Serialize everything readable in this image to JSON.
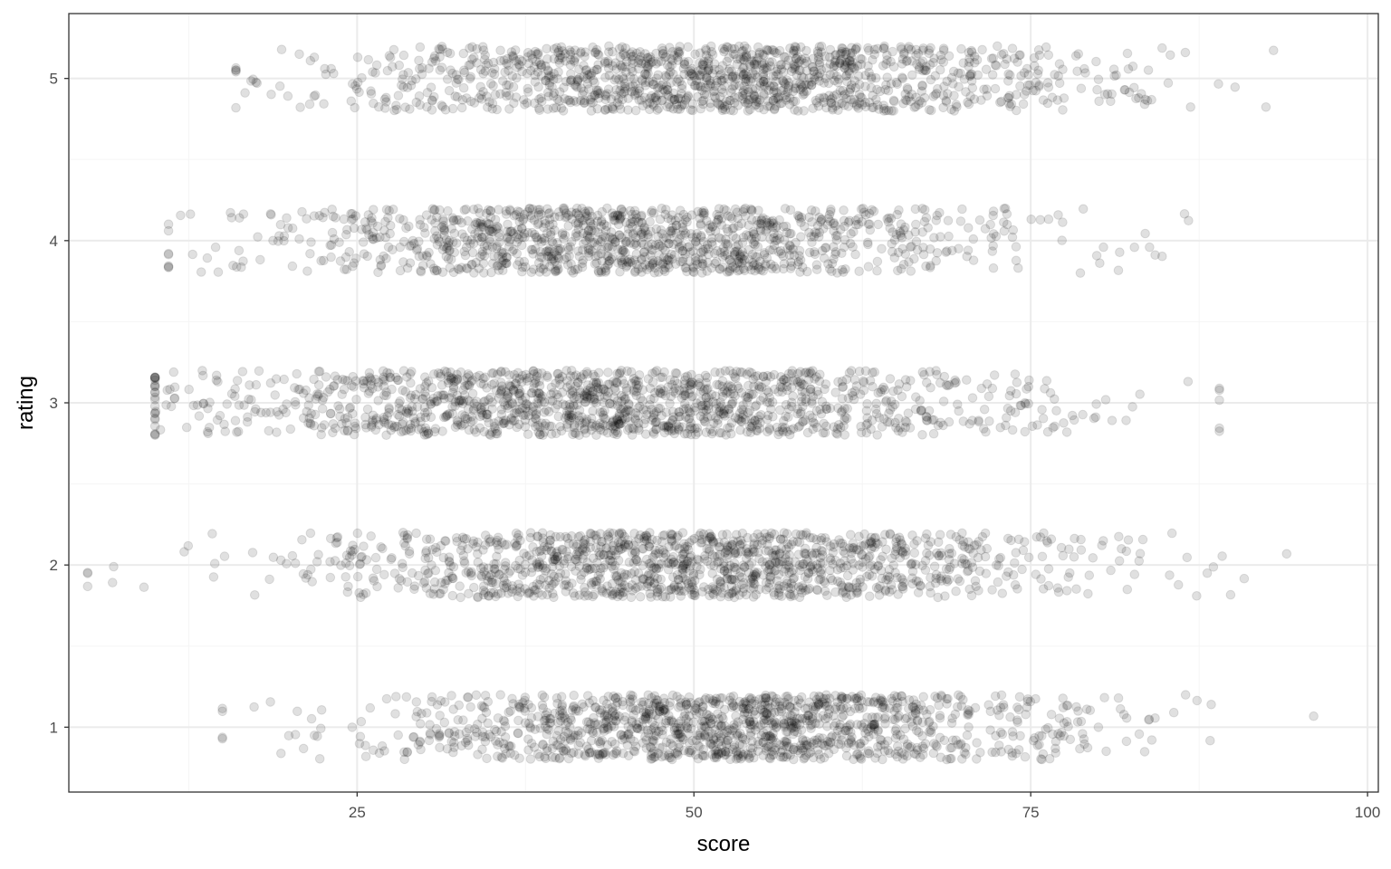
{
  "chart_data": {
    "type": "scatter",
    "title": "",
    "xlabel": "score",
    "ylabel": "rating",
    "xlim": [
      3.6,
      100.8
    ],
    "ylim": [
      0.6,
      5.4
    ],
    "x_ticks": [
      25,
      50,
      75,
      100
    ],
    "y_ticks": [
      1,
      2,
      3,
      4,
      5
    ],
    "grid": true,
    "jitter_height": 0.2,
    "point_color": "#000000",
    "point_alpha": 0.12,
    "series": [
      {
        "rating": 1,
        "n": 1300,
        "mean": 53,
        "sd": 13,
        "min": 15,
        "max": 96
      },
      {
        "rating": 2,
        "n": 1300,
        "mean": 50,
        "sd": 14,
        "min": 5,
        "max": 94
      },
      {
        "rating": 3,
        "n": 1400,
        "mean": 44,
        "sd": 15,
        "min": 10,
        "max": 89
      },
      {
        "rating": 4,
        "n": 1200,
        "mean": 46,
        "sd": 14,
        "min": 11,
        "max": 93
      },
      {
        "rating": 5,
        "n": 1300,
        "mean": 53,
        "sd": 14,
        "min": 16,
        "max": 97
      }
    ]
  },
  "colors": {
    "background": "#ffffff",
    "panel_border": "#333333",
    "grid_major": "#ebebeb",
    "grid_minor": "#f5f5f5",
    "tick_text": "#4d4d4d"
  }
}
